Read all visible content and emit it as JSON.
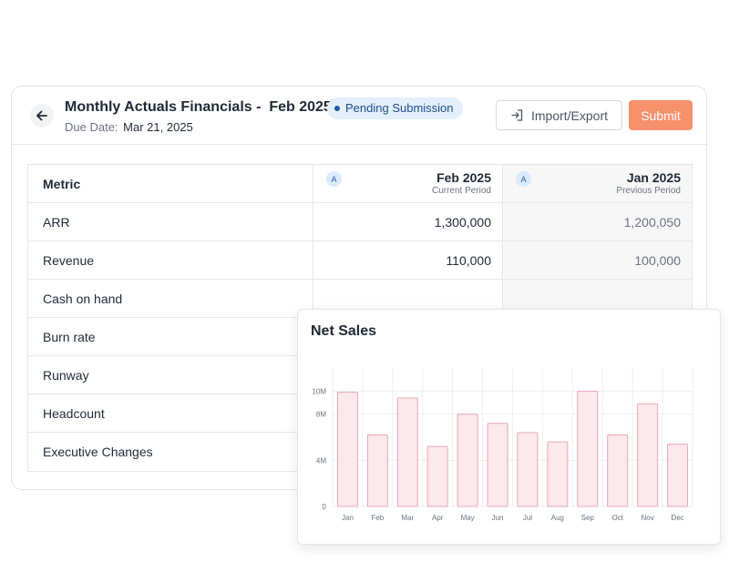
{
  "header": {
    "title": "Monthly Actuals Financials -  Feb 2025",
    "due_label": "Due Date:",
    "due_value": "Mar 21, 2025",
    "status_badge": "Pending Submission",
    "import_export_label": "Import/Export",
    "submit_label": "Submit",
    "colors": {
      "badge_bg": "#e3effb",
      "badge_text": "#1e4e8c",
      "submit_bg": "#f7906d"
    }
  },
  "table": {
    "columns": [
      {
        "label": "Metric"
      },
      {
        "label": "Feb 2025",
        "sublabel": "Current Period",
        "avatar": "A"
      },
      {
        "label": "Jan 2025",
        "sublabel": "Previous Period",
        "avatar": "A"
      }
    ],
    "rows": [
      {
        "metric": "ARR",
        "current": "1,300,000",
        "previous": "1,200,050"
      },
      {
        "metric": "Revenue",
        "current": "110,000",
        "previous": "100,000"
      },
      {
        "metric": "Cash on hand",
        "current": "",
        "previous": ""
      },
      {
        "metric": "Burn rate",
        "current": "",
        "previous": ""
      },
      {
        "metric": "Runway",
        "current": "",
        "previous": ""
      },
      {
        "metric": "Headcount",
        "current": "",
        "previous": ""
      },
      {
        "metric": "Executive Changes",
        "current": "",
        "previous": ""
      }
    ]
  },
  "chart_data": {
    "type": "bar",
    "title": "Net Sales",
    "categories": [
      "Jan",
      "Feb",
      "Mar",
      "Apr",
      "May",
      "Jun",
      "Jul",
      "Aug",
      "Sep",
      "Oct",
      "Nov",
      "Dec"
    ],
    "values": [
      9.9,
      6.2,
      9.4,
      5.2,
      8.0,
      7.2,
      6.4,
      5.6,
      10.0,
      6.2,
      8.9,
      5.4
    ],
    "ylim": [
      0,
      12
    ],
    "yticks": [
      0,
      4,
      8,
      10
    ],
    "ytick_labels": [
      "0",
      "4M",
      "8M",
      "10M"
    ],
    "grid": true,
    "colors": {
      "bar_fill": "#fde8ec",
      "bar_stroke": "#e7a9b4",
      "grid": "#eeeeee"
    }
  }
}
